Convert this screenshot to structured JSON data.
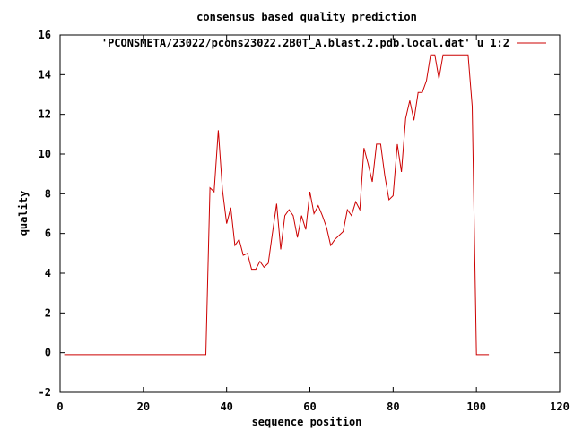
{
  "chart_data": {
    "type": "line",
    "title": "consensus based quality prediction",
    "xlabel": "sequence position",
    "ylabel": "quality",
    "xlim": [
      0,
      120
    ],
    "ylim": [
      -2,
      16
    ],
    "xticks": [
      0,
      20,
      40,
      60,
      80,
      100,
      120
    ],
    "yticks": [
      -2,
      0,
      2,
      4,
      6,
      8,
      10,
      12,
      14,
      16
    ],
    "xtick_labels": [
      "0",
      "20",
      "40",
      "60",
      "80",
      "100",
      "120"
    ],
    "ytick_labels": [
      "-2",
      "0",
      "2",
      "4",
      "6",
      "8",
      "10",
      "12",
      "14",
      "16"
    ],
    "grid": false,
    "legend_position": "top-right",
    "series": [
      {
        "name": "'PCONSMETA/23022/pcons23022.2B0T_A.blast.2.pdb.local.dat' u 1:2",
        "color": "#cc0000",
        "x": [
          1,
          2,
          3,
          4,
          5,
          6,
          7,
          8,
          9,
          10,
          11,
          12,
          13,
          14,
          15,
          16,
          17,
          18,
          19,
          20,
          21,
          22,
          23,
          24,
          25,
          26,
          27,
          28,
          29,
          30,
          31,
          32,
          33,
          34,
          35,
          36,
          37,
          38,
          39,
          40,
          41,
          42,
          43,
          44,
          45,
          46,
          47,
          48,
          49,
          50,
          51,
          52,
          53,
          54,
          55,
          56,
          57,
          58,
          59,
          60,
          61,
          62,
          63,
          64,
          65,
          66,
          67,
          68,
          69,
          70,
          71,
          72,
          73,
          74,
          75,
          76,
          77,
          78,
          79,
          80,
          81,
          82,
          83,
          84,
          85,
          86,
          87,
          88,
          89,
          90,
          91,
          92,
          93,
          94,
          95,
          96,
          97,
          98,
          99,
          100,
          101,
          102,
          103
        ],
        "y": [
          -0.1,
          -0.1,
          -0.1,
          -0.1,
          -0.1,
          -0.1,
          -0.1,
          -0.1,
          -0.1,
          -0.1,
          -0.1,
          -0.1,
          -0.1,
          -0.1,
          -0.1,
          -0.1,
          -0.1,
          -0.1,
          -0.1,
          -0.1,
          -0.1,
          -0.1,
          -0.1,
          -0.1,
          -0.1,
          -0.1,
          -0.1,
          -0.1,
          -0.1,
          -0.1,
          -0.1,
          -0.1,
          -0.1,
          -0.1,
          -0.1,
          8.3,
          8.1,
          11.2,
          8.2,
          6.5,
          7.3,
          5.4,
          5.7,
          4.9,
          5.0,
          4.2,
          4.2,
          4.6,
          4.3,
          4.5,
          6.0,
          7.5,
          5.2,
          6.9,
          7.2,
          6.9,
          5.8,
          6.9,
          6.2,
          8.1,
          7.0,
          7.4,
          6.9,
          6.3,
          5.4,
          5.7,
          5.9,
          6.1,
          7.2,
          6.9,
          7.6,
          7.2,
          10.3,
          9.5,
          8.6,
          10.5,
          10.5,
          8.9,
          7.7,
          7.9,
          10.5,
          9.1,
          11.8,
          12.7,
          11.7,
          13.1,
          13.1,
          13.7,
          15.0,
          15.0,
          13.8,
          15.0,
          15.0,
          15.0,
          15.0,
          15.0,
          15.0,
          15.0,
          12.4,
          -0.1,
          -0.1,
          -0.1,
          -0.1
        ]
      }
    ]
  }
}
